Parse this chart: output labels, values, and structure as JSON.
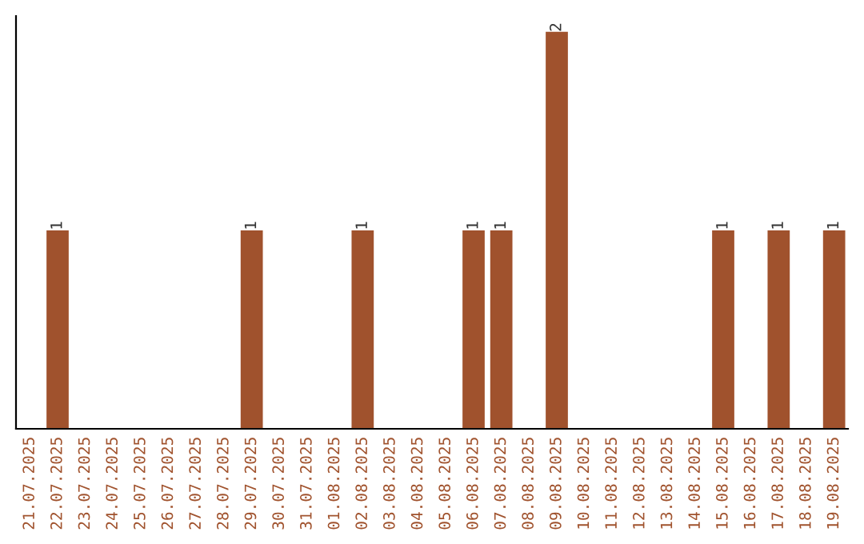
{
  "chart_data": {
    "type": "bar",
    "categories": [
      "21.07.2025",
      "22.07.2025",
      "23.07.2025",
      "24.07.2025",
      "25.07.2025",
      "26.07.2025",
      "27.07.2025",
      "28.07.2025",
      "29.07.2025",
      "30.07.2025",
      "31.07.2025",
      "01.08.2025",
      "02.08.2025",
      "03.08.2025",
      "04.08.2025",
      "05.08.2025",
      "06.08.2025",
      "07.08.2025",
      "08.08.2025",
      "09.08.2025",
      "10.08.2025",
      "11.08.2025",
      "12.08.2025",
      "13.08.2025",
      "14.08.2025",
      "15.08.2025",
      "16.08.2025",
      "17.08.2025",
      "18.08.2025",
      "19.08.2025"
    ],
    "values": [
      0,
      1,
      0,
      0,
      0,
      0,
      0,
      0,
      1,
      0,
      0,
      0,
      1,
      0,
      0,
      0,
      1,
      1,
      0,
      2,
      0,
      0,
      0,
      0,
      0,
      1,
      0,
      1,
      0,
      1
    ],
    "color": "#a0522d",
    "ylim": [
      0,
      2.08
    ],
    "tick_labels": "x",
    "value_labels": [
      null,
      "1",
      null,
      null,
      null,
      null,
      null,
      null,
      "1",
      null,
      null,
      null,
      "1",
      null,
      null,
      null,
      "1",
      "1",
      null,
      "2",
      null,
      null,
      null,
      null,
      null,
      "1",
      null,
      "1",
      null,
      "1"
    ],
    "grid": false,
    "legend": false
  }
}
